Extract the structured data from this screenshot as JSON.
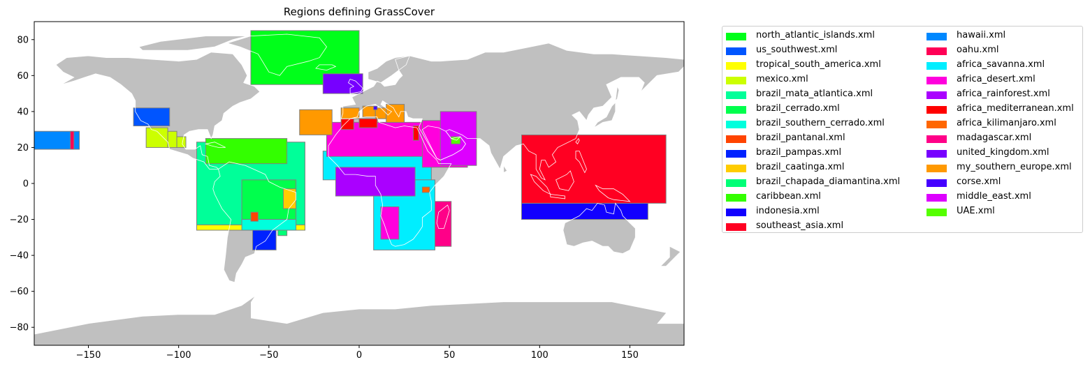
{
  "title": "Regions defining GrassCover",
  "map": {
    "land_color": "#c0c0c0",
    "ocean_color": "#ffffff",
    "coastline_color": "#ffffff",
    "region_edge_color": "#808080"
  },
  "axes": {
    "xlim": [
      -180,
      180
    ],
    "ylim": [
      -90,
      90
    ],
    "xticks": [
      -150,
      -100,
      -50,
      0,
      50,
      100,
      150
    ],
    "yticks": [
      80,
      60,
      40,
      20,
      0,
      -20,
      -40,
      -60,
      -80
    ],
    "xtick_labels": [
      "−150",
      "−100",
      "−50",
      "0",
      "50",
      "100",
      "150"
    ],
    "ytick_labels": [
      "80",
      "60",
      "40",
      "20",
      "0",
      "−20",
      "−40",
      "−60",
      "−80"
    ]
  },
  "chart_data": {
    "type": "map",
    "title": "Regions defining GrassCover",
    "legend_placement": "outside-right",
    "regions": [
      {
        "name": "north_atlantic_islands.xml",
        "color": "#00ff1a",
        "boxes": [
          [
            -60,
            0,
            55,
            85
          ]
        ]
      },
      {
        "name": "us_southwest.xml",
        "color": "#0055ff",
        "boxes": [
          [
            -125,
            -105,
            32,
            42
          ]
        ]
      },
      {
        "name": "tropical_south_america.xml",
        "color": "#ffff00",
        "boxes": [
          [
            -90,
            -30,
            -26,
            -23
          ]
        ]
      },
      {
        "name": "mexico.xml",
        "color": "#ccff00",
        "boxes": [
          [
            -118,
            -106,
            20,
            31
          ],
          [
            -106,
            -101,
            20,
            29
          ],
          [
            -101,
            -96,
            20,
            26
          ]
        ]
      },
      {
        "name": "brazil_mata_atlantica.xml",
        "color": "#00ff99",
        "boxes": [
          [
            -90,
            -30,
            -23,
            23
          ]
        ]
      },
      {
        "name": "brazil_cerrado.xml",
        "color": "#00ff4d",
        "boxes": [
          [
            -65,
            -35,
            -20,
            2
          ]
        ]
      },
      {
        "name": "brazil_southern_cerrado.xml",
        "color": "#00ffdd",
        "boxes": [
          [
            -65,
            -35,
            -26,
            -20
          ]
        ]
      },
      {
        "name": "brazil_pantanal.xml",
        "color": "#ff4400",
        "boxes": [
          [
            -60,
            -56,
            -21,
            -16
          ]
        ]
      },
      {
        "name": "brazil_pampas.xml",
        "color": "#0022ff",
        "boxes": [
          [
            -59,
            -46,
            -37,
            -26
          ]
        ]
      },
      {
        "name": "brazil_caatinga.xml",
        "color": "#ffcc00",
        "boxes": [
          [
            -42,
            -35,
            -14,
            -3
          ]
        ]
      },
      {
        "name": "brazil_chapada_diamantina.xml",
        "color": "#00ff77",
        "boxes": [
          [
            -45,
            -40,
            -29,
            -26
          ]
        ]
      },
      {
        "name": "caribbean.xml",
        "color": "#33ff00",
        "boxes": [
          [
            -85,
            -40,
            11,
            25
          ]
        ]
      },
      {
        "name": "indonesia.xml",
        "color": "#1100ff",
        "boxes": [
          [
            90,
            160,
            -20,
            -11
          ]
        ]
      },
      {
        "name": "southeast_asia.xml",
        "color": "#ff0022",
        "boxes": [
          [
            90,
            170,
            -11,
            27
          ]
        ]
      },
      {
        "name": "hawaii.xml",
        "color": "#0088ff",
        "boxes": [
          [
            -180,
            -155,
            19,
            29
          ]
        ]
      },
      {
        "name": "oahu.xml",
        "color": "#ff0055",
        "boxes": [
          [
            -160,
            -158,
            19,
            29
          ]
        ]
      },
      {
        "name": "africa_savanna.xml",
        "color": "#00eeff",
        "boxes": [
          [
            -20,
            40,
            2,
            18
          ],
          [
            8,
            42,
            -37,
            2
          ]
        ]
      },
      {
        "name": "africa_desert.xml",
        "color": "#ff00dd",
        "boxes": [
          [
            -18,
            35,
            15,
            34
          ],
          [
            35,
            60,
            9,
            35
          ],
          [
            12,
            22,
            -31,
            -13
          ]
        ]
      },
      {
        "name": "africa_rainforest.xml",
        "color": "#aa00ff",
        "boxes": [
          [
            -13,
            31,
            -7,
            9
          ]
        ]
      },
      {
        "name": "africa_mediterranean.xml",
        "color": "#ff0000",
        "boxes": [
          [
            -10,
            -3,
            30,
            36
          ],
          [
            0,
            10,
            31,
            36
          ],
          [
            30,
            33,
            24,
            32
          ]
        ]
      },
      {
        "name": "africa_kilimanjaro.xml",
        "color": "#ff6600",
        "boxes": [
          [
            35,
            39,
            -5,
            -2
          ]
        ]
      },
      {
        "name": "madagascar.xml",
        "color": "#ff0088",
        "boxes": [
          [
            42,
            51,
            -35,
            -10
          ]
        ]
      },
      {
        "name": "united_kingdom.xml",
        "color": "#7700ff",
        "boxes": [
          [
            -20,
            2,
            50,
            61
          ]
        ]
      },
      {
        "name": "my_southern_europe.xml",
        "color": "#ff9900",
        "boxes": [
          [
            -33,
            -15,
            27,
            41
          ],
          [
            -10,
            0,
            36,
            42
          ],
          [
            2,
            9,
            37,
            43
          ],
          [
            9,
            15,
            36,
            42
          ],
          [
            15,
            25,
            34,
            44
          ]
        ]
      },
      {
        "name": "corse.xml",
        "color": "#4400ff",
        "boxes": [
          [
            8,
            10,
            41,
            43
          ]
        ]
      },
      {
        "name": "middle_east.xml",
        "color": "#dd00ff",
        "boxes": [
          [
            45,
            65,
            10,
            40
          ]
        ]
      },
      {
        "name": "UAE.xml",
        "color": "#55ff00",
        "boxes": [
          [
            51,
            56,
            22,
            26
          ]
        ]
      }
    ]
  }
}
